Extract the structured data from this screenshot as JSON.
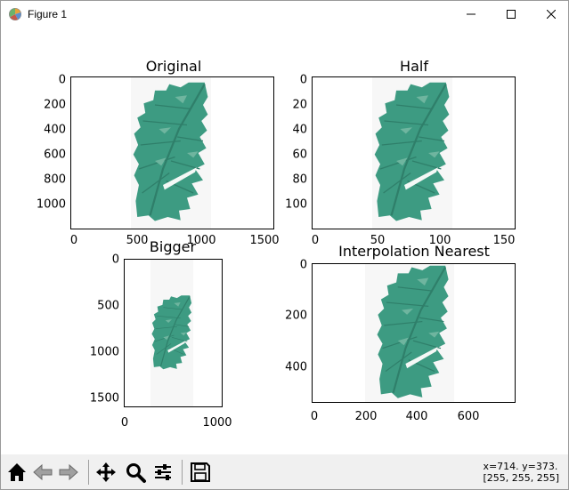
{
  "window": {
    "title": "Figure 1",
    "icons": {
      "app": "matplotlib-figure-icon",
      "minimize": "minimize-icon",
      "maximize": "maximize-icon",
      "close": "close-icon"
    }
  },
  "toolbar": {
    "icons": [
      "home-icon",
      "back-arrow-icon",
      "forward-arrow-icon",
      "pan-move-icon",
      "zoom-magnifier-icon",
      "configure-subplots-icon",
      "save-floppy-icon"
    ],
    "coords_line1": "x=714. y=373.",
    "coords_line2": "[255, 255, 255]"
  },
  "plots": [
    {
      "title": "Original",
      "xticks": [
        "0",
        "500",
        "1000",
        "1500"
      ],
      "yticks": [
        "0",
        "200",
        "400",
        "600",
        "800",
        "1000"
      ]
    },
    {
      "title": "Half",
      "xticks": [
        "0",
        "50",
        "100",
        "150"
      ],
      "yticks": [
        "0",
        "20",
        "40",
        "60",
        "80",
        "100"
      ]
    },
    {
      "title": "Bigger",
      "xticks": [
        "0",
        "1000"
      ],
      "yticks": [
        "0",
        "500",
        "1000",
        "1500"
      ]
    },
    {
      "title": "Interpolation Nearest",
      "xticks": [
        "0",
        "200",
        "400",
        "600"
      ],
      "yticks": [
        "0",
        "200",
        "400"
      ]
    }
  ],
  "colors": {
    "leaf": "#3d9b82",
    "leaf_dark": "#2f7f6a",
    "leaf_light": "#6fb59f",
    "toolbar_bg": "#f0f0f0"
  }
}
